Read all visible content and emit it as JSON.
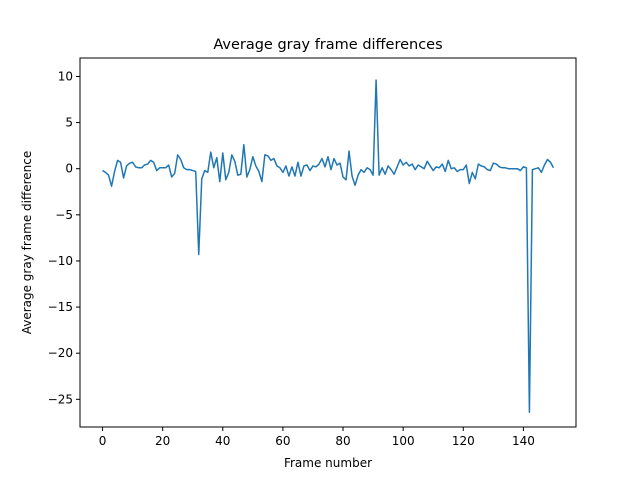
{
  "chart_data": {
    "type": "line",
    "title": "Average gray frame differences",
    "xlabel": "Frame number",
    "ylabel": "Average gray frame difference",
    "xlim": [
      -7.5,
      157.5
    ],
    "ylim": [
      -28,
      12
    ],
    "xticks": [
      0,
      20,
      40,
      60,
      80,
      100,
      120,
      140
    ],
    "yticks": [
      10,
      5,
      0,
      -5,
      -10,
      -15,
      -20,
      -25
    ],
    "ytick_labels": [
      "10",
      "5",
      "0",
      "−5",
      "−10",
      "−15",
      "−20",
      "−25"
    ],
    "grid": false,
    "line_color": "#1f77b4",
    "x_start": 0,
    "x_step": 1,
    "values": [
      -0.2,
      -0.4,
      -0.7,
      -1.9,
      -0.3,
      0.9,
      0.7,
      -1.0,
      0.3,
      0.6,
      0.7,
      0.2,
      0.1,
      0.1,
      0.4,
      0.5,
      0.9,
      0.7,
      -0.2,
      0.1,
      0.1,
      0.1,
      0.4,
      -0.9,
      -0.5,
      1.5,
      1.0,
      0.1,
      -0.1,
      -0.1,
      -0.2,
      -0.3,
      -9.3,
      -1.1,
      -0.2,
      -0.4,
      1.8,
      0.1,
      1.2,
      -1.4,
      1.7,
      -1.2,
      -0.4,
      1.5,
      0.8,
      -0.7,
      -0.6,
      2.6,
      -0.9,
      -0.1,
      1.3,
      0.3,
      -0.3,
      -1.4,
      1.5,
      1.4,
      0.9,
      1.1,
      0.3,
      0.1,
      -0.4,
      0.3,
      -0.8,
      0.2,
      -0.8,
      0.7,
      -0.8,
      0.3,
      0.4,
      -0.2,
      0.3,
      0.2,
      0.5,
      1.1,
      0.2,
      1.3,
      -0.1,
      1.1,
      0.4,
      0.6,
      -0.9,
      -1.2,
      1.9,
      -0.8,
      -1.8,
      -0.7,
      -0.1,
      -0.4,
      0.1,
      -0.1,
      -0.7,
      9.6,
      -0.7,
      0.1,
      -0.6,
      0.3,
      -0.1,
      -0.6,
      0.2,
      1.0,
      0.4,
      0.7,
      0.3,
      0.5,
      -0.1,
      0.4,
      0.2,
      0.0,
      0.8,
      0.3,
      -0.2,
      0.2,
      0.1,
      0.5,
      -0.3,
      0.9,
      0.0,
      0.1,
      -0.3,
      -0.1,
      -0.1,
      0.4,
      -1.6,
      -0.4,
      -1.1,
      0.5,
      0.3,
      0.2,
      -0.1,
      -0.2,
      0.6,
      0.5,
      0.2,
      0.1,
      0.1,
      0.0,
      0.0,
      0.0,
      0.0,
      -0.2,
      0.2,
      0.1,
      -26.4,
      -0.1,
      0.0,
      0.1,
      -0.4,
      0.4,
      1.0,
      0.7,
      0.1
    ]
  }
}
